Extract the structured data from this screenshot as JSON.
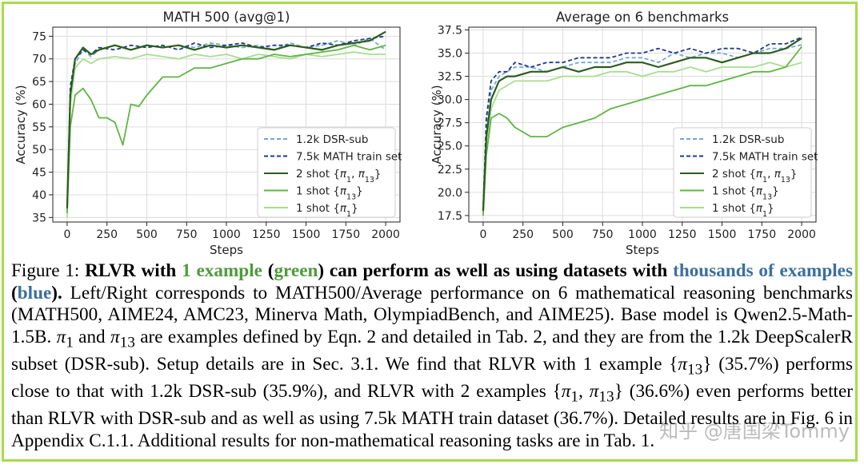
{
  "colors": {
    "dsr": "#74a9cf",
    "math": "#1f3a8a",
    "two_shot": "#2b5d1d",
    "one_shot_13": "#5fb544",
    "one_shot_1": "#a7de8e",
    "frame": "#a6dd4a",
    "caption_green": "#4f9a3c",
    "caption_blue": "#3b6fa0"
  },
  "chart_data": [
    {
      "type": "line",
      "title": "MATH 500 (avg@1)",
      "xlabel": "Steps",
      "ylabel": "Accuracy (%)",
      "xlim": [
        -90,
        2090
      ],
      "ylim": [
        34,
        77
      ],
      "xticks": [
        0,
        250,
        500,
        750,
        1000,
        1250,
        1500,
        1750,
        2000
      ],
      "yticks": [
        35,
        40,
        45,
        50,
        55,
        60,
        65,
        70,
        75
      ],
      "grid": true,
      "legend": "center-right",
      "series": [
        {
          "name": "1.2k DSR-sub",
          "style": "dashed",
          "color_key": "dsr",
          "x": [
            0,
            20,
            50,
            100,
            150,
            200,
            300,
            400,
            500,
            600,
            700,
            800,
            900,
            1000,
            1100,
            1200,
            1300,
            1400,
            1500,
            1600,
            1700,
            1800,
            1900,
            2000
          ],
          "y": [
            36,
            63,
            69,
            72,
            70.5,
            72,
            73,
            72,
            73,
            72.5,
            73,
            72.5,
            73.5,
            73,
            72.5,
            73,
            72,
            73.5,
            72.5,
            73,
            74,
            73,
            74.5,
            72
          ]
        },
        {
          "name": "7.5k MATH train set",
          "style": "dashed",
          "color_key": "math",
          "x": [
            0,
            20,
            50,
            100,
            150,
            200,
            300,
            400,
            500,
            600,
            700,
            800,
            900,
            1000,
            1100,
            1200,
            1300,
            1400,
            1500,
            1600,
            1700,
            1800,
            1900,
            2000
          ],
          "y": [
            36,
            64,
            70,
            72,
            71,
            72.5,
            72,
            73,
            72.5,
            73,
            72,
            73.5,
            72.5,
            73,
            73.5,
            72.5,
            73,
            73,
            72.5,
            73.5,
            73,
            74,
            74.5,
            75
          ]
        },
        {
          "name": "2 shot {π1, π13}",
          "style": "solid",
          "color_key": "two_shot",
          "x": [
            0,
            20,
            50,
            100,
            150,
            200,
            300,
            400,
            500,
            600,
            700,
            800,
            900,
            1000,
            1100,
            1200,
            1300,
            1400,
            1500,
            1600,
            1700,
            1800,
            1900,
            2000
          ],
          "y": [
            37,
            62,
            70,
            72.5,
            71,
            72,
            73,
            72,
            73,
            72.5,
            73,
            72,
            73,
            72.5,
            73,
            72.5,
            72,
            73,
            72.5,
            72,
            73,
            73.5,
            74,
            76
          ]
        },
        {
          "name": "1 shot {π13}",
          "style": "solid",
          "color_key": "one_shot_13",
          "x": [
            0,
            20,
            50,
            100,
            150,
            200,
            250,
            300,
            350,
            400,
            450,
            500,
            600,
            700,
            800,
            900,
            1000,
            1100,
            1200,
            1300,
            1400,
            1500,
            1600,
            1700,
            1800,
            1900,
            2000
          ],
          "y": [
            36,
            55,
            62,
            63.5,
            61,
            57,
            57,
            56,
            51,
            60,
            59.5,
            62,
            66,
            66,
            68,
            68,
            69,
            70,
            70,
            71,
            70.5,
            71,
            71.5,
            72,
            73,
            72,
            73
          ]
        },
        {
          "name": "1 shot {π1}",
          "style": "solid",
          "color_key": "one_shot_1",
          "x": [
            0,
            20,
            50,
            100,
            150,
            200,
            300,
            400,
            500,
            600,
            700,
            800,
            900,
            1000,
            1100,
            1200,
            1300,
            1400,
            1500,
            1600,
            1700,
            1800,
            1900,
            2000
          ],
          "y": [
            35,
            60,
            68,
            70,
            69,
            70,
            70.5,
            70,
            71,
            70.5,
            70,
            71,
            70.5,
            71,
            70,
            71,
            70.5,
            70,
            71,
            70.5,
            71,
            71.5,
            71,
            71
          ]
        }
      ]
    },
    {
      "type": "line",
      "title": "Average on 6 benchmarks",
      "xlabel": "Steps",
      "ylabel": "Accuracy (%)",
      "xlim": [
        -90,
        2090
      ],
      "ylim": [
        16.8,
        37.8
      ],
      "xticks": [
        0,
        250,
        500,
        750,
        1000,
        1250,
        1500,
        1750,
        2000
      ],
      "yticks": [
        17.5,
        20.0,
        22.5,
        25.0,
        27.5,
        30.0,
        32.5,
        35.0,
        37.5
      ],
      "grid": true,
      "legend": "center-right",
      "series": [
        {
          "name": "1.2k DSR-sub",
          "style": "dashed",
          "color_key": "dsr",
          "x": [
            0,
            20,
            50,
            100,
            150,
            200,
            300,
            400,
            500,
            600,
            700,
            800,
            900,
            1000,
            1100,
            1200,
            1300,
            1400,
            1500,
            1600,
            1700,
            1800,
            1900,
            2000
          ],
          "y": [
            18,
            27,
            31,
            32.5,
            33,
            33.5,
            33.5,
            33,
            33.5,
            34,
            34,
            34,
            34.5,
            34.5,
            34,
            35,
            34.5,
            35,
            35,
            34.5,
            35,
            35.5,
            35.5,
            35.9
          ]
        },
        {
          "name": "7.5k MATH train set",
          "style": "dashed",
          "color_key": "math",
          "x": [
            0,
            20,
            50,
            100,
            150,
            200,
            300,
            400,
            500,
            600,
            700,
            800,
            900,
            1000,
            1100,
            1200,
            1300,
            1400,
            1500,
            1600,
            1700,
            1800,
            1900,
            2000
          ],
          "y": [
            18,
            28,
            32,
            33,
            33,
            34,
            33.5,
            34,
            34,
            34.5,
            34.5,
            34.5,
            35,
            35,
            35.5,
            35,
            35.5,
            35,
            35.5,
            35.5,
            35,
            36,
            36,
            36.7
          ]
        },
        {
          "name": "2 shot {π1, π13}",
          "style": "solid",
          "color_key": "two_shot",
          "x": [
            0,
            20,
            50,
            100,
            150,
            200,
            300,
            400,
            500,
            600,
            700,
            800,
            900,
            1000,
            1100,
            1200,
            1300,
            1400,
            1500,
            1600,
            1700,
            1800,
            1900,
            2000
          ],
          "y": [
            18,
            26,
            30,
            32,
            32.5,
            32.5,
            33,
            33,
            33.5,
            33,
            33.5,
            33.5,
            34,
            34,
            33.5,
            34,
            34.5,
            34.5,
            34,
            34.5,
            35,
            35,
            35.5,
            36.6
          ]
        },
        {
          "name": "1 shot {π13}",
          "style": "solid",
          "color_key": "one_shot_13",
          "x": [
            0,
            20,
            50,
            100,
            150,
            200,
            300,
            400,
            500,
            600,
            700,
            800,
            900,
            1000,
            1100,
            1200,
            1300,
            1400,
            1500,
            1600,
            1700,
            1800,
            1900,
            2000
          ],
          "y": [
            17.5,
            24,
            28,
            28.5,
            28,
            27,
            26,
            26,
            27,
            27.5,
            28,
            29,
            29.5,
            30,
            30.5,
            31,
            31.5,
            31.5,
            32,
            32.5,
            33,
            33,
            33.5,
            35.7
          ]
        },
        {
          "name": "1 shot {π1}",
          "style": "solid",
          "color_key": "one_shot_1",
          "x": [
            0,
            20,
            50,
            100,
            150,
            200,
            300,
            400,
            500,
            600,
            700,
            800,
            900,
            1000,
            1100,
            1200,
            1300,
            1400,
            1500,
            1600,
            1700,
            1800,
            1900,
            2000
          ],
          "y": [
            17.5,
            25,
            29,
            31,
            31.5,
            32,
            32,
            32,
            32.5,
            32.5,
            32.5,
            33,
            33,
            32.5,
            33,
            33,
            33.5,
            33,
            33.5,
            33.5,
            33.5,
            34,
            33.5,
            34
          ]
        }
      ]
    }
  ],
  "legend_labels": {
    "dsr": "1.2k DSR-sub",
    "math": "7.5k MATH train set",
    "two_shot_prefix": "2 shot {",
    "two_shot_sub1": "1",
    "two_shot_sep": ", ",
    "two_shot_sub2": "13",
    "two_shot_suffix": "}",
    "one_shot_13_prefix": "1 shot {",
    "one_shot_13_sub": "13",
    "one_shot_1_prefix": "1 shot {",
    "one_shot_1_sub": "1",
    "close": "}",
    "pi": "π"
  },
  "caption": {
    "fig_label": "Figure 1: ",
    "bold_1": "RLVR with ",
    "green_1": "1 example",
    "bold_2": " (",
    "green_2": "green",
    "bold_3": ") can perform as well as using datasets with ",
    "blue_1": "thousands of examples",
    "bold_4": " (",
    "blue_2": "blue",
    "bold_5": ").",
    "body_1": " Left/Right corresponds to MATH500/Average performance on 6 mathematical reasoning benchmarks (MATH500, AIME24, AMC23, Minerva Math, OlympiadBench, and AIME25). Base model is Qwen2.5-Math-1.5B. ",
    "pi1": "π",
    "pi1_sub": "1",
    "body_2": " and ",
    "pi13": "π",
    "pi13_sub": "13",
    "body_3": " are examples defined by Eqn. 2 and detailed in Tab. 2, and they are from the 1.2k DeepScalerR subset (DSR-sub). Setup details are in Sec. 3.1. We find that RLVR with 1 example {",
    "pi_a": "π",
    "pi_a_sub": "13",
    "body_4": "} (35.7%) performs close to that with 1.2k DSR-sub (35.9%), and RLVR with 2 examples {",
    "pi_b": "π",
    "pi_b_sub": "1",
    "body_5": ", ",
    "pi_c": "π",
    "pi_c_sub": "13",
    "body_6": "} (36.6%) even performs better than RLVR with DSR-sub and as well as using 7.5k MATH train dataset (36.7%). Detailed results are in Fig. 6 in Appendix C.1.1. Additional results for non-mathematical reasoning tasks are in Tab. 1."
  },
  "watermark": "知乎 @唐国梁Tommy"
}
